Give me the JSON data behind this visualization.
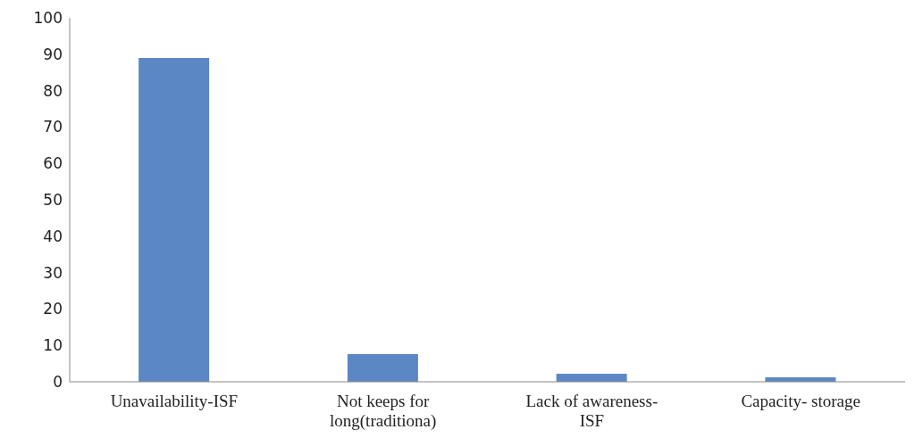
{
  "chart_data": {
    "type": "bar",
    "categories": [
      "Unavailability-ISF",
      "Not keeps for long(traditiona)",
      "Lack of awareness-ISF",
      "Capacity- storage"
    ],
    "values": [
      89,
      7.6,
      2.2,
      1.2
    ],
    "color": "#5b87c5",
    "ylim": [
      0,
      100
    ],
    "yticks": [
      0,
      10,
      20,
      30,
      40,
      50,
      60,
      70,
      80,
      90,
      100
    ],
    "grid": false
  }
}
